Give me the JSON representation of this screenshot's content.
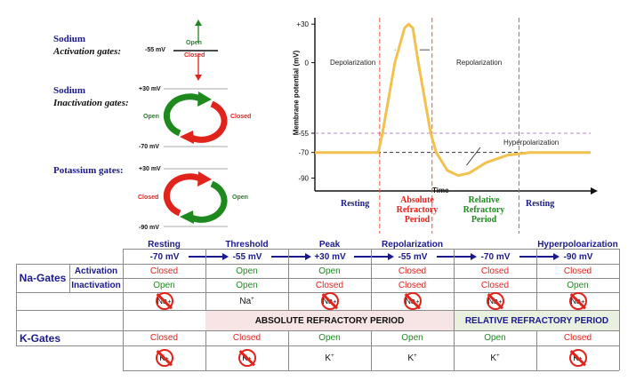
{
  "gates_panel": {
    "sodium_activation": {
      "title": "Sodium",
      "subtitle": "Activation gates:",
      "mv_label": "-55 mV",
      "open": "Open",
      "closed": "Closed"
    },
    "sodium_inactivation": {
      "title": "Sodium",
      "subtitle": "Inactivation gates:",
      "top_mv": "+30 mV",
      "bottom_mv": "-70 mV",
      "open": "Open",
      "closed": "Closed"
    },
    "potassium": {
      "title": "Potassium gates:",
      "top_mv": "+30 mV",
      "bottom_mv": "-90 mV",
      "closed": "Closed",
      "open": "Open"
    },
    "colors": {
      "navy": "#1a1a8c",
      "red": "#e0231b",
      "green": "#1e8a1e"
    }
  },
  "chart_data": {
    "type": "line",
    "title": "",
    "xlabel": "Time",
    "ylabel": "Membrane potential (mV)",
    "ylim": [
      -100,
      35
    ],
    "y_ticks": [
      "+30",
      "0",
      "-55",
      "-70",
      "-90"
    ],
    "y_tick_values": [
      30,
      0,
      -55,
      -70,
      -90
    ],
    "series": [
      {
        "values": [
          [
            0,
            -70
          ],
          [
            0.23,
            -70
          ],
          [
            0.245,
            -55
          ],
          [
            0.29,
            0
          ],
          [
            0.325,
            27
          ],
          [
            0.34,
            30
          ],
          [
            0.355,
            27
          ],
          [
            0.375,
            0
          ],
          [
            0.42,
            -55
          ],
          [
            0.44,
            -70
          ],
          [
            0.48,
            -84
          ],
          [
            0.52,
            -88
          ],
          [
            0.56,
            -86
          ],
          [
            0.62,
            -78
          ],
          [
            0.7,
            -72
          ],
          [
            0.78,
            -70
          ],
          [
            1,
            -70
          ]
        ]
      }
    ],
    "reference_lines": {
      "threshold": -55,
      "resting": -70
    },
    "period_boundaries": [
      0.235,
      0.425,
      0.74
    ],
    "annotations": [
      "Depolarization",
      "Repolarization",
      "Hyperpolarization"
    ],
    "phases": [
      "Resting",
      "Absolute Refractory Period",
      "Relative Refractory Period",
      "Resting"
    ],
    "line_color": "#f2c14e"
  },
  "table": {
    "stages": [
      {
        "name": "Resting",
        "mv": "-70 mV"
      },
      {
        "name": "Threshold",
        "mv": "-55 mV"
      },
      {
        "name": "Peak",
        "mv": "+30 mV"
      },
      {
        "name": "Repolarization",
        "mv": "-55 mV"
      },
      {
        "name": "",
        "mv": "-70 mV"
      },
      {
        "name": "Hyperpoloarization",
        "mv": "-90 mV"
      }
    ],
    "na_label": "Na-Gates",
    "activation_label": "Activation",
    "inactivation_label": "Inactivation",
    "activation": [
      "Closed",
      "Open",
      "Open",
      "Closed",
      "Closed",
      "Closed"
    ],
    "inactivation": [
      "Open",
      "Open",
      "Closed",
      "Closed",
      "Closed",
      "Open"
    ],
    "na_ion": "Na",
    "na_blocked": [
      true,
      false,
      true,
      true,
      true,
      true
    ],
    "absolute_label": "ABSOLUTE REFRACTORY PERIOD",
    "relative_label": "RELATIVE REFRACTORY PERIOD",
    "k_label": "K-Gates",
    "k_state": [
      "Closed",
      "Closed",
      "Open",
      "Open",
      "Open",
      "Closed"
    ],
    "k_ion": "K",
    "k_blocked": [
      true,
      true,
      false,
      false,
      false,
      true
    ]
  }
}
